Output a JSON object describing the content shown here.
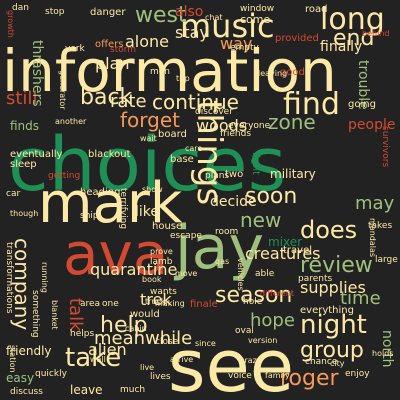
{
  "colors": {
    "background": "#222222",
    "green": "#1e8f55",
    "red": "#d34a33",
    "cream": "#fde9a6",
    "olive": "#9ec07c",
    "orange": "#f59a58"
  },
  "words": [
    {
      "text": "choices",
      "color": "green"
    },
    {
      "text": "information",
      "color": "cream"
    },
    {
      "text": "see",
      "color": "cream"
    },
    {
      "text": "ava",
      "color": "red"
    },
    {
      "text": "jay",
      "color": "olive"
    },
    {
      "text": "mark",
      "color": "cream"
    },
    {
      "text": "things",
      "color": "cream"
    },
    {
      "text": "music",
      "color": "cream"
    },
    {
      "text": "long",
      "color": "cream"
    },
    {
      "text": "find",
      "color": "cream"
    },
    {
      "text": "take",
      "color": "cream"
    },
    {
      "text": "season",
      "color": "cream"
    },
    {
      "text": "night",
      "color": "cream"
    },
    {
      "text": "company",
      "color": "cream"
    },
    {
      "text": "does",
      "color": "cream"
    },
    {
      "text": "group",
      "color": "cream"
    },
    {
      "text": "help",
      "color": "cream"
    },
    {
      "text": "review",
      "color": "olive"
    },
    {
      "text": "back",
      "color": "cream"
    },
    {
      "text": "west",
      "color": "olive"
    },
    {
      "text": "end",
      "color": "cream"
    },
    {
      "text": "continue",
      "color": "cream"
    },
    {
      "text": "rate",
      "color": "cream"
    },
    {
      "text": "forget",
      "color": "orange"
    },
    {
      "text": "zone",
      "color": "olive"
    },
    {
      "text": "soon",
      "color": "cream"
    },
    {
      "text": "new",
      "color": "olive"
    },
    {
      "text": "hope",
      "color": "olive"
    },
    {
      "text": "time",
      "color": "olive"
    },
    {
      "text": "roger",
      "color": "orange"
    },
    {
      "text": "meanwhile",
      "color": "cream"
    },
    {
      "text": "quarantine",
      "color": "cream"
    },
    {
      "text": "creatures",
      "color": "cream"
    },
    {
      "text": "supplies",
      "color": "cream"
    },
    {
      "text": "talk",
      "color": "red"
    },
    {
      "text": "still",
      "color": "red"
    },
    {
      "text": "alone",
      "color": "cream"
    },
    {
      "text": "plan",
      "color": "cream"
    },
    {
      "text": "stay",
      "color": "cream"
    },
    {
      "text": "way",
      "color": "orange"
    },
    {
      "text": "woods",
      "color": "cream"
    },
    {
      "text": "decide",
      "color": "cream"
    },
    {
      "text": "trek",
      "color": "cream"
    },
    {
      "text": "alien",
      "color": "cream"
    },
    {
      "text": "people",
      "color": "red"
    },
    {
      "text": "may",
      "color": "olive"
    },
    {
      "text": "like",
      "color": "cream"
    },
    {
      "text": "finally",
      "color": "cream"
    },
    {
      "text": "trouble",
      "color": "olive"
    },
    {
      "text": "thrashers",
      "color": "olive"
    },
    {
      "text": "also",
      "color": "red"
    },
    {
      "text": "north",
      "color": "olive"
    },
    {
      "text": "military",
      "color": "cream"
    },
    {
      "text": "sleep",
      "color": "cream"
    },
    {
      "text": "house",
      "color": "cream"
    },
    {
      "text": "mixer",
      "color": "green"
    },
    {
      "text": "everything",
      "color": "cream"
    },
    {
      "text": "going",
      "color": "cream"
    },
    {
      "text": "finds",
      "color": "olive"
    },
    {
      "text": "friendly",
      "color": "cream"
    },
    {
      "text": "leave",
      "color": "cream"
    },
    {
      "text": "easy",
      "color": "olive"
    },
    {
      "text": "board",
      "color": "cream"
    },
    {
      "text": "eventually",
      "color": "cream"
    },
    {
      "text": "blackout",
      "color": "cream"
    },
    {
      "text": "heading",
      "color": "cream"
    },
    {
      "text": "travel",
      "color": "cream"
    },
    {
      "text": "offers",
      "color": "orange"
    },
    {
      "text": "york",
      "color": "cream"
    },
    {
      "text": "danger",
      "color": "cream"
    },
    {
      "text": "window",
      "color": "cream"
    },
    {
      "text": "road",
      "color": "cream"
    },
    {
      "text": "come",
      "color": "cream"
    },
    {
      "text": "provided",
      "color": "red"
    },
    {
      "text": "empty",
      "color": "cream"
    },
    {
      "text": "good",
      "color": "red"
    },
    {
      "text": "men",
      "color": "cream"
    },
    {
      "text": "base",
      "color": "cream"
    },
    {
      "text": "two",
      "color": "cream"
    },
    {
      "text": "fight",
      "color": "green"
    },
    {
      "text": "plans",
      "color": "cream"
    },
    {
      "text": "escape",
      "color": "cream"
    },
    {
      "text": "lamb",
      "color": "cream"
    },
    {
      "text": "wants",
      "color": "cream"
    },
    {
      "text": "book",
      "color": "cream"
    },
    {
      "text": "able",
      "color": "cream"
    },
    {
      "text": "parents",
      "color": "cream"
    },
    {
      "text": "move",
      "color": "cream"
    },
    {
      "text": "close",
      "color": "cream"
    },
    {
      "text": "since",
      "color": "cream"
    },
    {
      "text": "voice",
      "color": "cream"
    },
    {
      "text": "family",
      "color": "cream"
    },
    {
      "text": "chance",
      "color": "cream"
    },
    {
      "text": "city",
      "color": "cream"
    },
    {
      "text": "large",
      "color": "cream"
    },
    {
      "text": "takes",
      "color": "cream"
    },
    {
      "text": "gas",
      "color": "cream"
    },
    {
      "text": "hole",
      "color": "cream"
    },
    {
      "text": "oval",
      "color": "cream"
    },
    {
      "text": "version",
      "color": "cream"
    },
    {
      "text": "finale",
      "color": "red"
    },
    {
      "text": "would",
      "color": "cream"
    },
    {
      "text": "helps",
      "color": "cream"
    },
    {
      "text": "quickly",
      "color": "cream"
    },
    {
      "text": "discuss",
      "color": "cream"
    },
    {
      "text": "much",
      "color": "cream"
    },
    {
      "text": "lives",
      "color": "cream"
    },
    {
      "text": "stop",
      "color": "cream"
    },
    {
      "text": "chat",
      "color": "cream"
    },
    {
      "text": "dan",
      "color": "cream"
    },
    {
      "text": "storm",
      "color": "red"
    },
    {
      "text": "behind",
      "color": "red"
    },
    {
      "text": "discover",
      "color": "cream"
    },
    {
      "text": "friends",
      "color": "cream"
    },
    {
      "text": "everyone",
      "color": "cream"
    },
    {
      "text": "getting",
      "color": "red"
    },
    {
      "text": "ship",
      "color": "cream"
    },
    {
      "text": "show",
      "color": "cream"
    },
    {
      "text": "terrifying",
      "color": "cream"
    },
    {
      "text": "transformations",
      "color": "cream"
    },
    {
      "text": "something",
      "color": "cream"
    },
    {
      "text": "running",
      "color": "cream"
    },
    {
      "text": "station",
      "color": "cream"
    },
    {
      "text": "truck",
      "color": "cream"
    },
    {
      "text": "cabin",
      "color": "cream"
    },
    {
      "text": "leaving",
      "color": "cream"
    },
    {
      "text": "different",
      "color": "red"
    },
    {
      "text": "enjoy",
      "color": "cream"
    },
    {
      "text": "holds",
      "color": "cream"
    },
    {
      "text": "survivors",
      "color": "red"
    },
    {
      "text": "mandalas",
      "color": "cream"
    },
    {
      "text": "growth",
      "color": "red"
    },
    {
      "text": "wait",
      "color": "cream"
    },
    {
      "text": "care",
      "color": "cream"
    },
    {
      "text": "trip",
      "color": "cream"
    },
    {
      "text": "another",
      "color": "cream"
    },
    {
      "text": "area",
      "color": "cream"
    },
    {
      "text": "one",
      "color": "cream"
    },
    {
      "text": "wall",
      "color": "cream"
    },
    {
      "text": "arrive",
      "color": "cream"
    },
    {
      "text": "live",
      "color": "cream"
    },
    {
      "text": "crazy",
      "color": "cream"
    },
    {
      "text": "prove",
      "color": "cream"
    },
    {
      "text": "making",
      "color": "cream"
    },
    {
      "text": "room",
      "color": "cream"
    },
    {
      "text": "though",
      "color": "cream"
    },
    {
      "text": "car",
      "color": "cream"
    },
    {
      "text": "vehicles",
      "color": "cream"
    },
    {
      "text": "generator",
      "color": "cream"
    },
    {
      "text": "blanket",
      "color": "cream"
    }
  ]
}
